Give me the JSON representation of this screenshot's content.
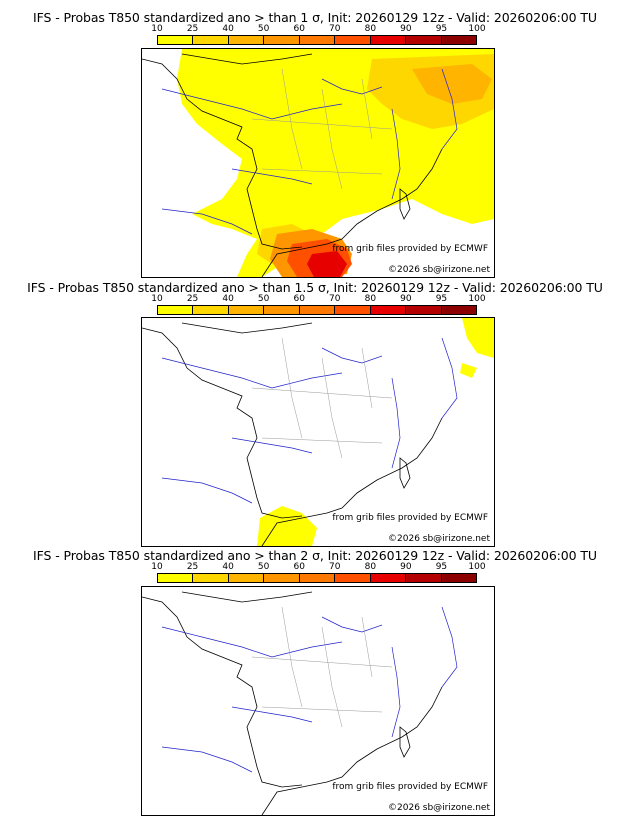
{
  "panels": [
    {
      "title": "IFS - Probas T850  standardized ano > than 1 σ, Init: 20260129 12z - Valid: 20260206:00 TU"
    },
    {
      "title": "IFS - Probas T850  standardized ano > than 1.5 σ, Init: 20260129 12z - Valid: 20260206:00 TU"
    },
    {
      "title": "IFS - Probas T850  standardized ano > than 2 σ, Init: 20260129 12z - Valid: 20260206:00 TU"
    }
  ],
  "colorbar": {
    "labels": [
      "10",
      "25",
      "40",
      "50",
      "60",
      "70",
      "80",
      "90",
      "95",
      "100"
    ],
    "colors": [
      "#ffff00",
      "#ffd700",
      "#ffb400",
      "#ff9600",
      "#ff7800",
      "#ff5000",
      "#e60000",
      "#b40000",
      "#8c0000"
    ]
  },
  "credits": {
    "source": "from grib files provided by ECMWF",
    "copyright": "©2026 sb@irizone.net"
  },
  "colors": {
    "coast": "#000000",
    "rivers": "#2222cc",
    "borders": "#999999"
  }
}
